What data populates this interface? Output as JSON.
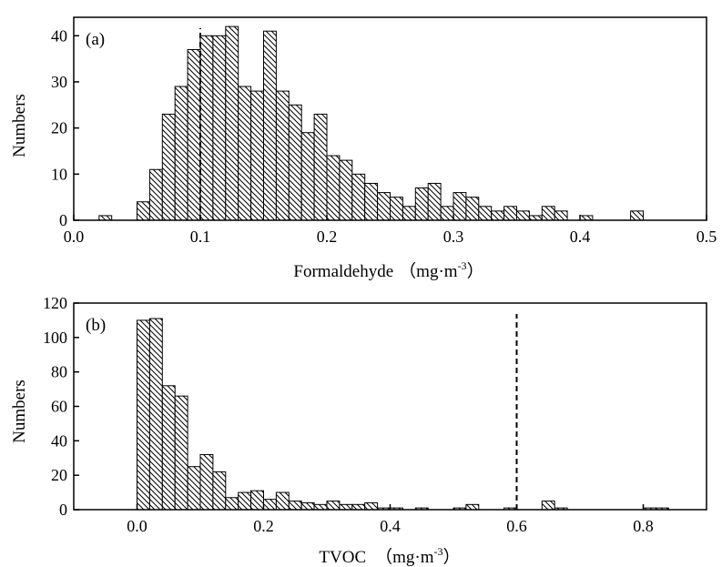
{
  "chart_data": [
    {
      "type": "bar",
      "panel_label": "(a)",
      "xlabel": "Formaldehyde",
      "xlabel_unit_base": "（mg·m",
      "xlabel_unit_sup": "-3",
      "xlabel_unit_close": "）",
      "ylabel": "Numbers",
      "xlim": [
        0.0,
        0.5
      ],
      "ylim": [
        0,
        44
      ],
      "x_ticks": [
        {
          "value": 0.0,
          "label": "0.0"
        },
        {
          "value": 0.1,
          "label": "0.1"
        },
        {
          "value": 0.2,
          "label": "0.2"
        },
        {
          "value": 0.3,
          "label": "0.3"
        },
        {
          "value": 0.4,
          "label": "0.4"
        },
        {
          "value": 0.5,
          "label": "0.5"
        }
      ],
      "y_ticks": [
        {
          "value": 0,
          "label": "0"
        },
        {
          "value": 10,
          "label": "10"
        },
        {
          "value": 20,
          "label": "20"
        },
        {
          "value": 30,
          "label": "30"
        },
        {
          "value": 40,
          "label": "40"
        }
      ],
      "bin_width": 0.01,
      "bins_start": [
        0.02,
        0.05,
        0.06,
        0.07,
        0.08,
        0.09,
        0.1,
        0.11,
        0.12,
        0.13,
        0.14,
        0.15,
        0.16,
        0.17,
        0.18,
        0.19,
        0.2,
        0.21,
        0.22,
        0.23,
        0.24,
        0.25,
        0.26,
        0.27,
        0.28,
        0.29,
        0.3,
        0.31,
        0.32,
        0.33,
        0.34,
        0.35,
        0.36,
        0.37,
        0.38,
        0.39,
        0.4,
        0.44
      ],
      "values": [
        1,
        4,
        11,
        23,
        29,
        37,
        40,
        40,
        42,
        29,
        28,
        41,
        28,
        25,
        19,
        23,
        14,
        13,
        10,
        8,
        6,
        5,
        3,
        7,
        8,
        3,
        6,
        5,
        3,
        2,
        3,
        2,
        1,
        3,
        2,
        0,
        1,
        2
      ],
      "reference_line_x": 0.1,
      "grid": false,
      "hatch": "diagonal"
    },
    {
      "type": "bar",
      "panel_label": "(b)",
      "xlabel": "TVOC",
      "xlabel_unit_base": "（mg·m",
      "xlabel_unit_sup": "-3",
      "xlabel_unit_close": "）",
      "ylabel": "Numbers",
      "xlim": [
        -0.1,
        0.9
      ],
      "ylim": [
        0,
        120
      ],
      "x_ticks": [
        {
          "value": 0.0,
          "label": "0.0"
        },
        {
          "value": 0.2,
          "label": "0.2"
        },
        {
          "value": 0.4,
          "label": "0.4"
        },
        {
          "value": 0.6,
          "label": "0.6"
        },
        {
          "value": 0.8,
          "label": "0.8"
        }
      ],
      "y_ticks": [
        {
          "value": 0,
          "label": "0"
        },
        {
          "value": 20,
          "label": "20"
        },
        {
          "value": 40,
          "label": "40"
        },
        {
          "value": 60,
          "label": "60"
        },
        {
          "value": 80,
          "label": "80"
        },
        {
          "value": 100,
          "label": "100"
        },
        {
          "value": 120,
          "label": "120"
        }
      ],
      "bin_width": 0.02,
      "bins_start": [
        0.0,
        0.02,
        0.04,
        0.06,
        0.08,
        0.1,
        0.12,
        0.14,
        0.16,
        0.18,
        0.2,
        0.22,
        0.24,
        0.26,
        0.28,
        0.3,
        0.32,
        0.34,
        0.36,
        0.38,
        0.4,
        0.44,
        0.5,
        0.52,
        0.58,
        0.64,
        0.66,
        0.8,
        0.82
      ],
      "values": [
        110,
        111,
        72,
        66,
        25,
        32,
        22,
        7,
        10,
        11,
        6,
        10,
        5,
        4,
        3,
        5,
        3,
        3,
        4,
        1,
        1,
        1,
        1,
        3,
        1,
        5,
        1,
        1,
        1
      ],
      "reference_line_x": 0.6,
      "grid": false,
      "hatch": "diagonal"
    }
  ]
}
